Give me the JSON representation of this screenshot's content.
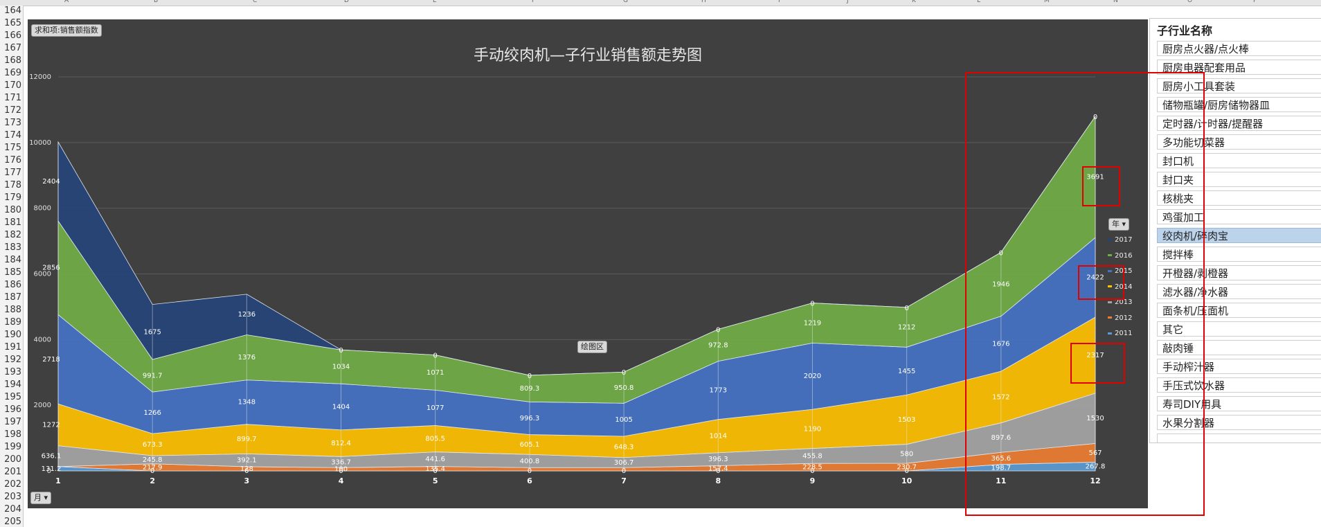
{
  "sheet": {
    "columns": [
      "A",
      "B",
      "C",
      "D",
      "E",
      "F",
      "G",
      "H",
      "I",
      "J",
      "K",
      "L",
      "M",
      "N",
      "O",
      "P"
    ],
    "rows": [
      "164",
      "165",
      "166",
      "167",
      "168",
      "169",
      "170",
      "171",
      "172",
      "173",
      "174",
      "175",
      "176",
      "177",
      "178",
      "179",
      "180",
      "181",
      "182",
      "183",
      "184",
      "185",
      "186",
      "187",
      "188",
      "189",
      "190",
      "191",
      "192",
      "193",
      "194",
      "195",
      "196",
      "197",
      "198",
      "199",
      "200",
      "201",
      "202",
      "203",
      "204",
      "205"
    ]
  },
  "pivot": {
    "value_button": "求和项:销售额指数",
    "axis_button": "月",
    "legend_button": "年",
    "plot_area_tooltip": "绘图区"
  },
  "chart_data": {
    "type": "area",
    "stacked": true,
    "title": "手动绞肉机—子行业销售额走势图",
    "xlabel": "",
    "ylabel": "",
    "categories": [
      "1",
      "2",
      "3",
      "4",
      "5",
      "6",
      "7",
      "8",
      "9",
      "10",
      "11",
      "12"
    ],
    "ylim": [
      0,
      12000
    ],
    "yticks": [
      "0",
      "2000",
      "4000",
      "6000",
      "8000",
      "10000",
      "12000"
    ],
    "grid": true,
    "legend_position": "right",
    "series": [
      {
        "name": "2011",
        "color": "#5b9bd5",
        "values": [
          131.2,
          0,
          0,
          0,
          0,
          0,
          0,
          0,
          0,
          0,
          198.7,
          267.8
        ],
        "labels": [
          "131.2",
          "0",
          "0",
          "0",
          "0",
          "0",
          "0",
          "0",
          "0",
          "0",
          "198.7",
          "267.8"
        ]
      },
      {
        "name": "2012",
        "color": "#ed7d31",
        "values": [
          0,
          217.9,
          128,
          100,
          135.4,
          100,
          100,
          157.4,
          228.5,
          230.7,
          365.6,
          567
        ],
        "labels": [
          "0",
          "217.9",
          "128",
          "100",
          "135.4",
          "",
          "",
          "157.4",
          "228.5",
          "230.7",
          "365.6",
          "567"
        ]
      },
      {
        "name": "2013",
        "color": "#a5a5a5",
        "values": [
          636.1,
          245.8,
          392.1,
          336.7,
          441.6,
          400.8,
          306.7,
          396.3,
          455.8,
          580,
          897.6,
          1530
        ],
        "labels": [
          "636.1",
          "245.8",
          "392.1",
          "336.7",
          "441.6",
          "400.8",
          "306.7",
          "396.3",
          "455.8",
          "580",
          "897.6",
          "1530"
        ]
      },
      {
        "name": "2014",
        "color": "#ffc000",
        "values": [
          1272,
          673.3,
          899.7,
          812.4,
          805.5,
          605.1,
          648.3,
          1014,
          1190,
          1503,
          1572,
          2317
        ],
        "labels": [
          "1272",
          "673.3",
          "899.7",
          "812.4",
          "805.5",
          "605.1",
          "648.3",
          "1014",
          "1190",
          "1503",
          "1572",
          "2317"
        ]
      },
      {
        "name": "2015",
        "color": "#4472c4",
        "values": [
          2718,
          1266,
          1348,
          1404,
          1077,
          996.3,
          1005,
          1773,
          2020,
          1455,
          1676,
          2422
        ],
        "labels": [
          "2718",
          "1266",
          "1348",
          "1404",
          "1077",
          "996.3",
          "1005",
          "1773",
          "2020",
          "1455",
          "1676",
          "2422"
        ]
      },
      {
        "name": "2016",
        "color": "#70ad47",
        "values": [
          2856,
          991.7,
          1376,
          1034,
          1071,
          809.3,
          950.8,
          972.8,
          1219,
          1212,
          1946,
          3691
        ],
        "labels": [
          "2856",
          "991.7",
          "1376",
          "1034",
          "1071",
          "809.3",
          "950.8",
          "972.8",
          "1219",
          "1212",
          "1946",
          "3691"
        ]
      },
      {
        "name": "2017",
        "color": "#264478",
        "values": [
          2404,
          1675,
          1236,
          0,
          0,
          0,
          0,
          0,
          0,
          0,
          0,
          0
        ],
        "labels": [
          "2404",
          "1675",
          "1236",
          "0",
          "0",
          "0",
          "0",
          "0",
          "0",
          "0",
          "0",
          "0"
        ]
      }
    ]
  },
  "slicer": {
    "title": "子行业名称",
    "items": [
      {
        "label": "厨房点火器/点火棒",
        "selected": false
      },
      {
        "label": "厨房电器配套用品",
        "selected": false
      },
      {
        "label": "厨房小工具套装",
        "selected": false
      },
      {
        "label": "储物瓶罐/厨房储物器皿",
        "selected": false
      },
      {
        "label": "定时器/计时器/提醒器",
        "selected": false
      },
      {
        "label": "多功能切菜器",
        "selected": false
      },
      {
        "label": "封口机",
        "selected": false
      },
      {
        "label": "封口夹",
        "selected": false
      },
      {
        "label": "核桃夹",
        "selected": false
      },
      {
        "label": "鸡蛋加工",
        "selected": false
      },
      {
        "label": "绞肉机/碎肉宝",
        "selected": true
      },
      {
        "label": "搅拌棒",
        "selected": false
      },
      {
        "label": "开橙器/剥橙器",
        "selected": false
      },
      {
        "label": "滤水器/净水器",
        "selected": false
      },
      {
        "label": "面条机/压面机",
        "selected": false
      },
      {
        "label": "其它",
        "selected": false
      },
      {
        "label": "敲肉锤",
        "selected": false
      },
      {
        "label": "手动榨汁器",
        "selected": false
      },
      {
        "label": "手压式饮水器",
        "selected": false
      },
      {
        "label": "寿司DIY用具",
        "selected": false
      },
      {
        "label": "水果分割器",
        "selected": false
      },
      {
        "label": "",
        "selected": false
      }
    ]
  }
}
